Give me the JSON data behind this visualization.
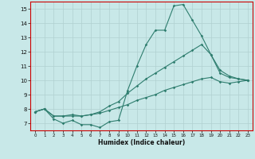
{
  "xlabel": "Humidex (Indice chaleur)",
  "bg_color": "#c8e8e8",
  "grid_color": "#b0d0d0",
  "line_color": "#2e7d6e",
  "spine_color": "#cc0000",
  "xlim": [
    -0.5,
    23.5
  ],
  "ylim": [
    6.5,
    15.5
  ],
  "xticks": [
    0,
    1,
    2,
    3,
    4,
    5,
    6,
    7,
    8,
    9,
    10,
    11,
    12,
    13,
    14,
    15,
    16,
    17,
    18,
    19,
    20,
    21,
    22,
    23
  ],
  "yticks": [
    7,
    8,
    9,
    10,
    11,
    12,
    13,
    14,
    15
  ],
  "line1_x": [
    0,
    1,
    2,
    3,
    4,
    5,
    6,
    7,
    8,
    9,
    10,
    11,
    12,
    13,
    14,
    15,
    16,
    17,
    18,
    19,
    20,
    21,
    22,
    23
  ],
  "line1_y": [
    7.8,
    8.0,
    7.3,
    7.0,
    7.2,
    6.9,
    6.9,
    6.7,
    7.1,
    7.2,
    9.3,
    11.0,
    12.5,
    13.5,
    13.5,
    15.2,
    15.3,
    14.2,
    13.1,
    11.8,
    10.7,
    10.3,
    10.1,
    10.0
  ],
  "line2_x": [
    0,
    1,
    2,
    3,
    4,
    5,
    6,
    7,
    8,
    9,
    10,
    11,
    12,
    13,
    14,
    15,
    16,
    17,
    18,
    19,
    20,
    21,
    22,
    23
  ],
  "line2_y": [
    7.8,
    8.0,
    7.5,
    7.5,
    7.6,
    7.5,
    7.6,
    7.8,
    8.2,
    8.5,
    9.1,
    9.6,
    10.1,
    10.5,
    10.9,
    11.3,
    11.7,
    12.1,
    12.5,
    11.8,
    10.5,
    10.2,
    10.1,
    10.0
  ],
  "line3_x": [
    0,
    1,
    2,
    3,
    4,
    5,
    6,
    7,
    8,
    9,
    10,
    11,
    12,
    13,
    14,
    15,
    16,
    17,
    18,
    19,
    20,
    21,
    22,
    23
  ],
  "line3_y": [
    7.8,
    8.0,
    7.5,
    7.5,
    7.5,
    7.5,
    7.6,
    7.7,
    7.9,
    8.1,
    8.3,
    8.6,
    8.8,
    9.0,
    9.3,
    9.5,
    9.7,
    9.9,
    10.1,
    10.2,
    9.9,
    9.8,
    9.9,
    10.0
  ]
}
